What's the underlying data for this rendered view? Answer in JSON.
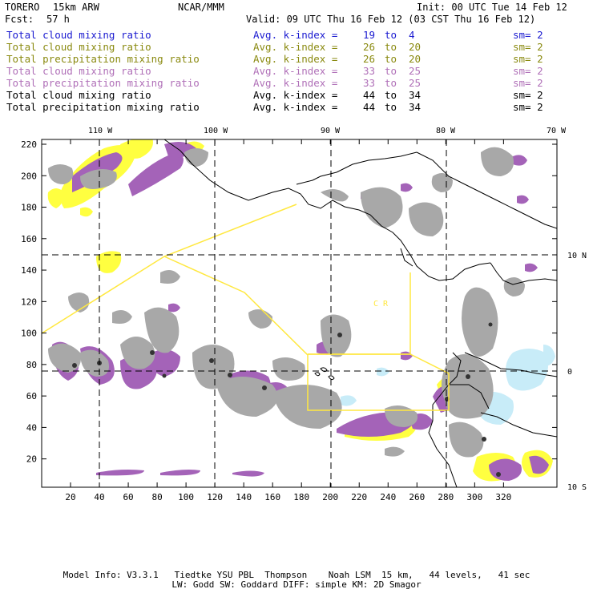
{
  "header": {
    "model": "TORERO",
    "resolution": "15km ARW",
    "org": "NCAR/MMM",
    "init": "Init: 00 UTC Tue 14 Feb 12",
    "fcst_label": "Fcst:",
    "fcst_value": "57 h",
    "valid": "Valid: 09 UTC Thu 16 Feb 12 (03 CST Thu 16 Feb 12)"
  },
  "legend": [
    {
      "name": "Total cloud mixing ratio",
      "avg": "Avg. k-index =",
      "hi": "19",
      "to": "to",
      "lo": "4",
      "sm": "sm= 2",
      "color": "#1a1ad0"
    },
    {
      "name": "Total cloud mixing ratio",
      "avg": "Avg. k-index =",
      "hi": "26",
      "to": "to",
      "lo": "20",
      "sm": "sm= 2",
      "color": "#8a8a10"
    },
    {
      "name": "Total precipitation mixing ratio",
      "avg": "Avg. k-index =",
      "hi": "26",
      "to": "to",
      "lo": "20",
      "sm": "sm= 2",
      "color": "#8a8a10"
    },
    {
      "name": "Total cloud mixing ratio",
      "avg": "Avg. k-index =",
      "hi": "33",
      "to": "to",
      "lo": "25",
      "sm": "sm= 2",
      "color": "#b070b8"
    },
    {
      "name": "Total precipitation mixing ratio",
      "avg": "Avg. k-index =",
      "hi": "33",
      "to": "to",
      "lo": "25",
      "sm": "sm= 2",
      "color": "#b070b8"
    },
    {
      "name": "Total cloud mixing ratio",
      "avg": "Avg. k-index =",
      "hi": "44",
      "to": "to",
      "lo": "34",
      "sm": "sm= 2",
      "color": "#000000"
    },
    {
      "name": "Total precipitation mixing ratio",
      "avg": "Avg. k-index =",
      "hi": "44",
      "to": "to",
      "lo": "34",
      "sm": "sm= 2",
      "color": "#000000"
    }
  ],
  "map": {
    "lon_labels": [
      "110 W",
      "100 W",
      "90 W",
      "80 W",
      "70 W"
    ],
    "lat_labels": [
      "10 N",
      "0",
      "10 S"
    ],
    "y_ticks": [
      "220",
      "200",
      "180",
      "160",
      "140",
      "120",
      "100",
      "80",
      "60",
      "40",
      "20"
    ],
    "x_ticks": [
      "20",
      "40",
      "60",
      "80",
      "100",
      "120",
      "140",
      "160",
      "180",
      "200",
      "220",
      "240",
      "260",
      "280",
      "300",
      "320"
    ],
    "region_labels": [
      "C R"
    ],
    "colors": {
      "yellow": "#ffff40",
      "purple": "#a463b8",
      "gray": "#a8a8a8",
      "light_blue": "#c8ecf8",
      "box": "#ffe840"
    }
  },
  "footer": {
    "line1": "Model Info: V3.3.1   Tiedtke YSU PBL  Thompson    Noah LSM  15 km,   44 levels,   41 sec",
    "line2": "LW: Godd SW: Goddard DIFF: simple KM: 2D Smagor"
  }
}
